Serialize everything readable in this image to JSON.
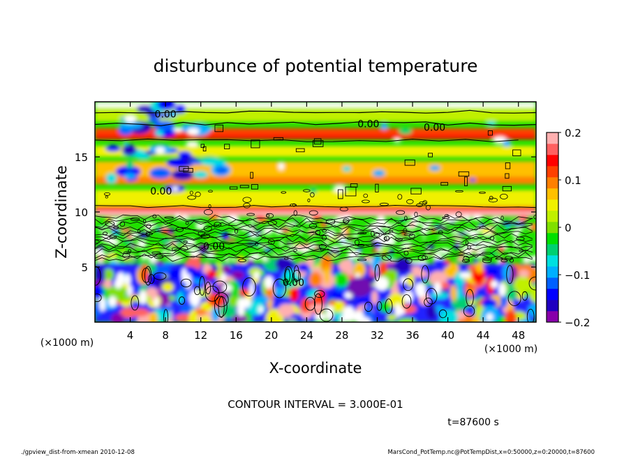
{
  "chart_data": {
    "type": "heatmap",
    "title": "disturbunce of potential temperature",
    "xlabel": "X-coordinate",
    "ylabel": "Z-coordinate",
    "x_unit": "(×1000 m)",
    "z_unit": "(×1000 m)",
    "xlim": [
      0,
      50
    ],
    "ylim": [
      0,
      20
    ],
    "x_ticks": [
      4,
      8,
      12,
      16,
      20,
      24,
      28,
      32,
      36,
      40,
      44,
      48
    ],
    "y_ticks": [
      5,
      10,
      15
    ],
    "colorbar": {
      "range": [
        -0.2,
        0.2
      ],
      "ticks": [
        {
          "value": 0.2,
          "label": "0.2"
        },
        {
          "value": 0.1,
          "label": "0.1"
        },
        {
          "value": 0,
          "label": "0"
        },
        {
          "value": -0.1,
          "label": "−0.1"
        },
        {
          "value": -0.2,
          "label": "−0.2"
        }
      ],
      "colors": [
        "#8800aa",
        "#2000c0",
        "#0000ff",
        "#0060ff",
        "#00b0ff",
        "#00e0e0",
        "#00d070",
        "#00e000",
        "#80e000",
        "#c0f000",
        "#f0f000",
        "#ffc000",
        "#ff8000",
        "#ff4000",
        "#ff0000",
        "#ff6060",
        "#ffb0b0"
      ]
    },
    "contour_labels": [
      {
        "text": "0.00",
        "x": 8,
        "z": 18.9
      },
      {
        "text": "0.00",
        "x": 31,
        "z": 18.0
      },
      {
        "text": "0.00",
        "x": 38.5,
        "z": 17.7
      },
      {
        "text": "0.00",
        "x": 7.5,
        "z": 11.9
      },
      {
        "text": "0.00",
        "x": 13.5,
        "z": 6.9
      },
      {
        "text": "0.00",
        "x": 22.5,
        "z": 3.6
      }
    ],
    "contour_interval": "CONTOUR INTERVAL = 3.000E-01",
    "time_label": "t=87600 s"
  },
  "footer": {
    "left": "./gpview_dist-from-xmean  2010-12-08",
    "right": "MarsCond_PotTemp.nc@PotTempDist,x=0:50000,z=0:20000,t=87600"
  }
}
